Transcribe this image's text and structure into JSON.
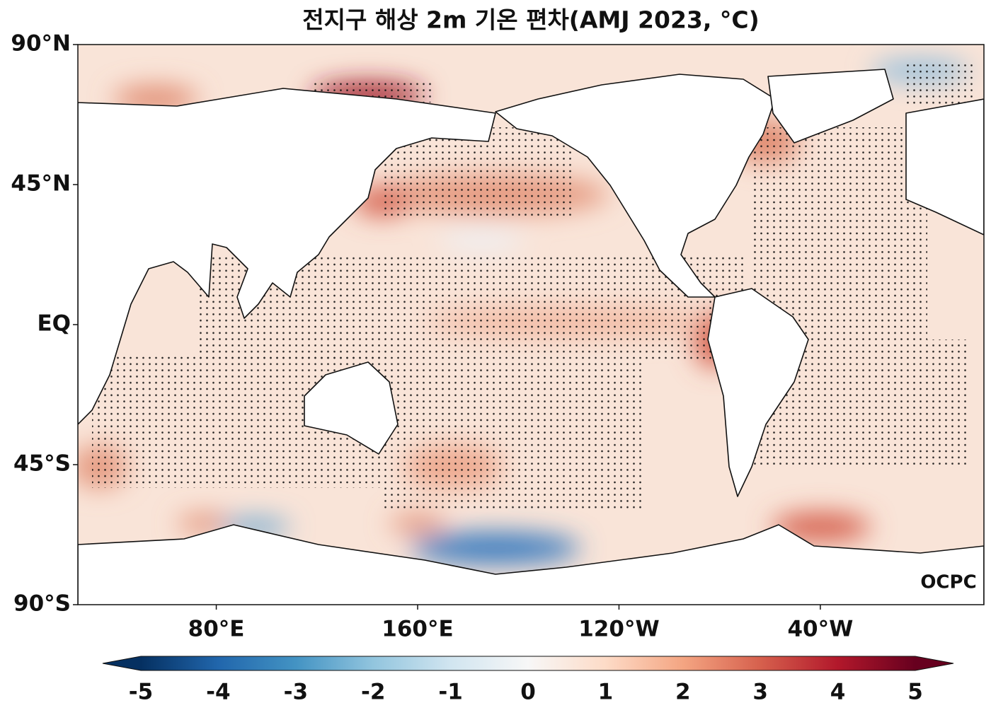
{
  "title": "전지구 해상 2m 기온 편차(AMJ 2023, °C)",
  "map": {
    "latlim": [
      -90,
      90
    ],
    "lonlim": [
      25,
      385
    ],
    "latticks": [
      {
        "value": 90,
        "label": "90°N"
      },
      {
        "value": 45,
        "label": "45°N"
      },
      {
        "value": 0,
        "label": "EQ"
      },
      {
        "value": -45,
        "label": "45°S"
      },
      {
        "value": -90,
        "label": "90°S"
      }
    ],
    "lonticks": [
      {
        "value": 80,
        "label": "80°E"
      },
      {
        "value": 160,
        "label": "160°E"
      },
      {
        "value": 240,
        "label": "120°W"
      },
      {
        "value": 320,
        "label": "40°W"
      }
    ]
  },
  "colorbar": {
    "lim": [
      -5,
      5
    ],
    "ticks": [
      -5,
      -4,
      -3,
      -2,
      -1,
      0,
      1,
      2,
      3,
      4,
      5
    ],
    "colors": [
      "#053061",
      "#2166ac",
      "#4393c3",
      "#92c5de",
      "#d1e5f0",
      "#f7f7f7",
      "#fddbc7",
      "#f4a582",
      "#d6604d",
      "#b2182b",
      "#67001f"
    ]
  },
  "logo": "OCPC"
}
